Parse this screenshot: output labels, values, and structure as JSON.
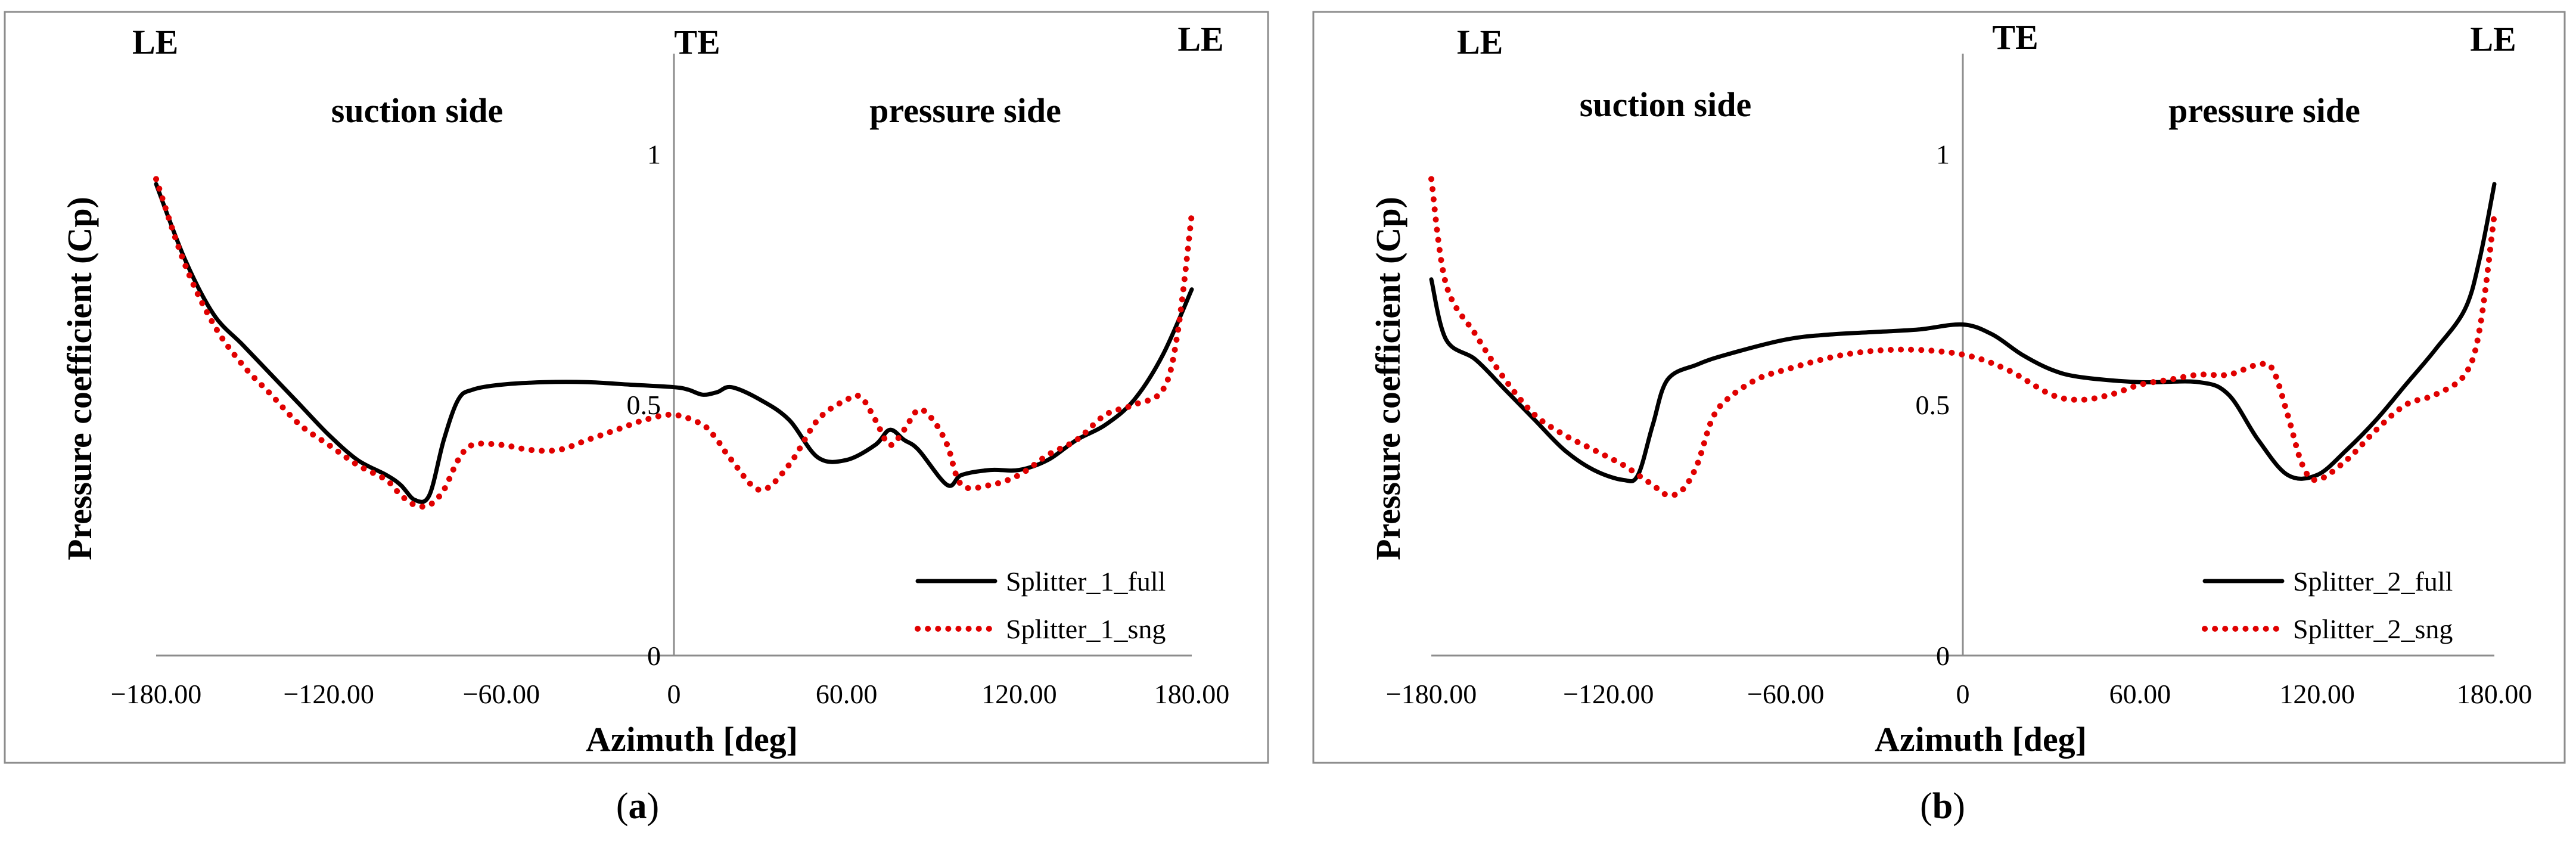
{
  "chart_data": [
    {
      "type": "line",
      "panel_label": "(a)",
      "xlabel": "Azimuth [deg]",
      "ylabel": "Pressure coefficient (Cp)",
      "xlim": [
        -180,
        180
      ],
      "ylim": [
        0,
        1.2
      ],
      "x_tick_labels": [
        "−180.00",
        "−120.00",
        "−60.00",
        "0",
        "60.00",
        "120.00",
        "180.00"
      ],
      "y_tick_labels": [
        "0",
        "0.5",
        "1"
      ],
      "region_labels": {
        "le_left": "LE",
        "te": "TE",
        "le_right": "LE",
        "suction": "suction side",
        "pressure": "pressure side"
      },
      "legend_position": "bottom-right",
      "series": [
        {
          "name": "Splitter_1_full",
          "style": "solid",
          "color": "#000000",
          "x": [
            -180,
            -170,
            -160,
            -150,
            -140,
            -130,
            -120,
            -110,
            -100,
            -95,
            -90,
            -85,
            -80,
            -75,
            -70,
            -60,
            -45,
            -30,
            -15,
            0,
            5,
            10,
            15,
            20,
            30,
            40,
            50,
            60,
            70,
            75,
            80,
            85,
            95,
            100,
            110,
            120,
            130,
            140,
            150,
            160,
            170,
            180
          ],
          "y": [
            0.94,
            0.79,
            0.68,
            0.62,
            0.56,
            0.5,
            0.44,
            0.39,
            0.36,
            0.34,
            0.31,
            0.32,
            0.43,
            0.51,
            0.53,
            0.54,
            0.545,
            0.545,
            0.54,
            0.535,
            0.53,
            0.52,
            0.525,
            0.535,
            0.51,
            0.47,
            0.395,
            0.39,
            0.42,
            0.45,
            0.43,
            0.41,
            0.34,
            0.36,
            0.37,
            0.37,
            0.39,
            0.43,
            0.46,
            0.51,
            0.6,
            0.73
          ]
        },
        {
          "name": "Splitter_1_sng",
          "style": "dotted",
          "color": "#e00000",
          "x": [
            -180,
            -170,
            -160,
            -150,
            -140,
            -130,
            -120,
            -110,
            -100,
            -95,
            -90,
            -85,
            -80,
            -75,
            -70,
            -60,
            -50,
            -40,
            -30,
            -20,
            -10,
            0,
            10,
            15,
            20,
            30,
            40,
            50,
            60,
            65,
            70,
            75,
            80,
            85,
            90,
            95,
            100,
            110,
            120,
            130,
            140,
            150,
            160,
            170,
            175,
            180
          ],
          "y": [
            0.95,
            0.78,
            0.66,
            0.58,
            0.52,
            0.46,
            0.42,
            0.38,
            0.35,
            0.32,
            0.3,
            0.3,
            0.33,
            0.39,
            0.42,
            0.42,
            0.41,
            0.41,
            0.43,
            0.45,
            0.47,
            0.48,
            0.46,
            0.43,
            0.39,
            0.33,
            0.38,
            0.47,
            0.51,
            0.515,
            0.47,
            0.42,
            0.45,
            0.49,
            0.47,
            0.42,
            0.34,
            0.34,
            0.36,
            0.4,
            0.43,
            0.48,
            0.5,
            0.53,
            0.64,
            0.88
          ]
        }
      ]
    },
    {
      "type": "line",
      "panel_label": "(b)",
      "xlabel": "Azimuth [deg]",
      "ylabel": "Pressure coefficient (Cp)",
      "xlim": [
        -180,
        180
      ],
      "ylim": [
        0,
        1.2
      ],
      "x_tick_labels": [
        "−180.00",
        "−120.00",
        "−60.00",
        "0",
        "60.00",
        "120.00",
        "180.00"
      ],
      "y_tick_labels": [
        "0",
        "0.5",
        "1"
      ],
      "region_labels": {
        "le_left": "LE",
        "te": "TE",
        "le_right": "LE",
        "suction": "suction side",
        "pressure": "pressure side"
      },
      "legend_position": "bottom-right",
      "series": [
        {
          "name": "Splitter_2_full",
          "style": "solid",
          "color": "#000000",
          "x": [
            -180,
            -175,
            -165,
            -155,
            -145,
            -135,
            -125,
            -115,
            -110,
            -105,
            -100,
            -90,
            -80,
            -60,
            -45,
            -30,
            -15,
            0,
            10,
            20,
            30,
            40,
            60,
            80,
            90,
            100,
            110,
            120,
            130,
            140,
            150,
            160,
            170,
            175,
            180
          ],
          "y": [
            0.75,
            0.63,
            0.59,
            0.53,
            0.47,
            0.41,
            0.37,
            0.35,
            0.36,
            0.46,
            0.55,
            0.58,
            0.6,
            0.63,
            0.64,
            0.645,
            0.65,
            0.66,
            0.64,
            0.6,
            0.57,
            0.555,
            0.545,
            0.545,
            0.52,
            0.43,
            0.36,
            0.36,
            0.41,
            0.47,
            0.54,
            0.61,
            0.69,
            0.79,
            0.94
          ]
        },
        {
          "name": "Splitter_2_sng",
          "style": "dotted",
          "color": "#e00000",
          "x": [
            -180,
            -175,
            -165,
            -155,
            -145,
            -135,
            -125,
            -115,
            -110,
            -105,
            -100,
            -95,
            -90,
            -85,
            -80,
            -70,
            -60,
            -40,
            -20,
            0,
            15,
            30,
            40,
            50,
            60,
            70,
            80,
            90,
            100,
            105,
            110,
            115,
            120,
            130,
            140,
            150,
            160,
            170,
            175,
            180
          ],
          "y": [
            0.95,
            0.74,
            0.64,
            0.55,
            0.48,
            0.44,
            0.41,
            0.38,
            0.36,
            0.34,
            0.32,
            0.33,
            0.38,
            0.47,
            0.51,
            0.55,
            0.57,
            0.6,
            0.61,
            0.6,
            0.57,
            0.52,
            0.51,
            0.52,
            0.54,
            0.55,
            0.56,
            0.56,
            0.58,
            0.57,
            0.48,
            0.38,
            0.35,
            0.39,
            0.45,
            0.5,
            0.52,
            0.56,
            0.65,
            0.88
          ]
        }
      ]
    }
  ]
}
